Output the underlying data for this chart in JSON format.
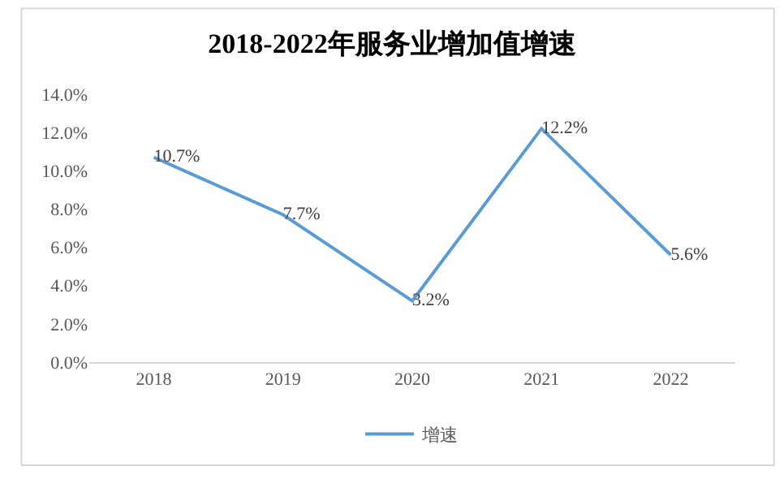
{
  "chart_data": {
    "type": "line",
    "title": "2018-2022年服务业增加值增速",
    "categories": [
      "2018",
      "2019",
      "2020",
      "2021",
      "2022"
    ],
    "series": [
      {
        "name": "增速",
        "color": "#5b9bd5",
        "values": [
          10.7,
          7.7,
          3.2,
          12.2,
          5.6
        ],
        "value_labels": [
          "10.7%",
          "7.7%",
          "3.2%",
          "12.2%",
          "5.6%"
        ]
      }
    ],
    "ylim": [
      0,
      14
    ],
    "yticks": [
      {
        "value": 0,
        "label": "0.0%"
      },
      {
        "value": 2,
        "label": "2.0%"
      },
      {
        "value": 4,
        "label": "4.0%"
      },
      {
        "value": 6,
        "label": "6.0%"
      },
      {
        "value": 8,
        "label": "8.0%"
      },
      {
        "value": 10,
        "label": "10.0%"
      },
      {
        "value": 12,
        "label": "12.0%"
      },
      {
        "value": 14,
        "label": "14.0%"
      }
    ],
    "grid": false,
    "legend": "bottom",
    "marker": "none",
    "line_style": "solid"
  }
}
